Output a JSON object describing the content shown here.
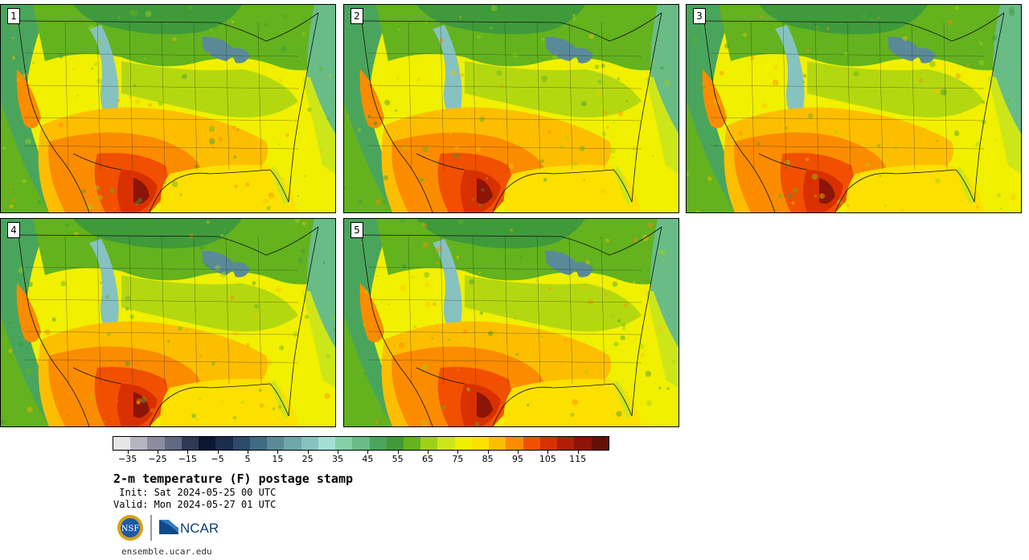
{
  "panels": [
    {
      "label": "1"
    },
    {
      "label": "2"
    },
    {
      "label": "3"
    },
    {
      "label": "4"
    },
    {
      "label": "5"
    }
  ],
  "colorbar": {
    "colors": [
      "#e6e6e6",
      "#b5b5c2",
      "#8c8ca0",
      "#606a85",
      "#2e3a55",
      "#0c1730",
      "#1a2d4c",
      "#2c4a6a",
      "#3f6a82",
      "#5a8a98",
      "#6fa8aa",
      "#86c2c0",
      "#a2e0d6",
      "#86d0a8",
      "#6abc86",
      "#4aa55c",
      "#3f9a3a",
      "#63b21e",
      "#a0d016",
      "#cde61a",
      "#f0f000",
      "#fce000",
      "#fdbe00",
      "#fb8c00",
      "#f05000",
      "#d83000",
      "#b01e08",
      "#8c1408",
      "#641008"
    ],
    "tick_labels": [
      "−35",
      "−25",
      "−15",
      "−5",
      "5",
      "15",
      "25",
      "35",
      "45",
      "55",
      "65",
      "75",
      "85",
      "95",
      "105",
      "115"
    ],
    "tick_values": [
      -35,
      -25,
      -15,
      -5,
      5,
      15,
      25,
      35,
      45,
      55,
      65,
      75,
      85,
      95,
      105,
      115
    ],
    "min": -40,
    "max": 125
  },
  "title": "2-m temperature (F) postage stamp",
  "init": " Init: Sat 2024-05-25 00 UTC",
  "valid": "Valid: Mon 2024-05-27 01 UTC",
  "logo_left": "NSF",
  "logo_right": "NCAR",
  "site": "ensemble.ucar.edu"
}
